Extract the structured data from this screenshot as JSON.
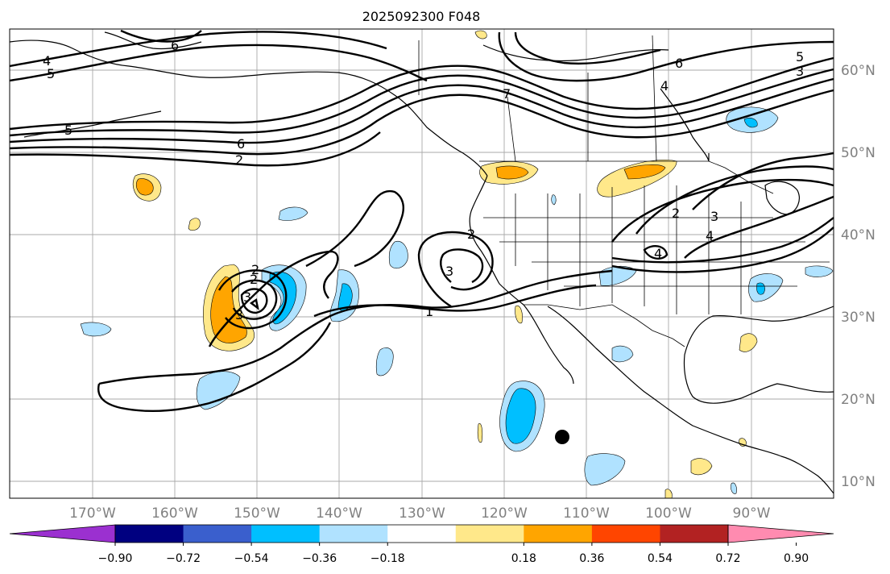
{
  "title": "2025092300 F048",
  "lat_labels": [
    "60°N",
    "50°N",
    "40°N",
    "30°N",
    "20°N",
    "10°N"
  ],
  "lon_labels": [
    "170°W",
    "160°W",
    "150°W",
    "140°W",
    "130°W",
    "120°W",
    "110°W",
    "100°W",
    "90°W"
  ],
  "contour_labels": [
    "4",
    "5",
    "6",
    "5",
    "6",
    "2",
    "7",
    "6",
    "4",
    "5",
    "3",
    "2",
    "3",
    "2",
    "4",
    "3",
    "4",
    "2",
    "3",
    "1",
    "3",
    "2"
  ],
  "colorbar": {
    "ticks": [
      "−0.90",
      "−0.72",
      "−0.54",
      "−0.36",
      "−0.18",
      "0.18",
      "0.36",
      "0.54",
      "0.72",
      "0.90"
    ],
    "colors": [
      "#9b30d0",
      "#000080",
      "#3a5fcd",
      "#00bfff",
      "#b0e2ff",
      "#ffffff",
      "#ffe88a",
      "#ffa500",
      "#ff4500",
      "#b22222",
      "#ff8bb0"
    ]
  }
}
